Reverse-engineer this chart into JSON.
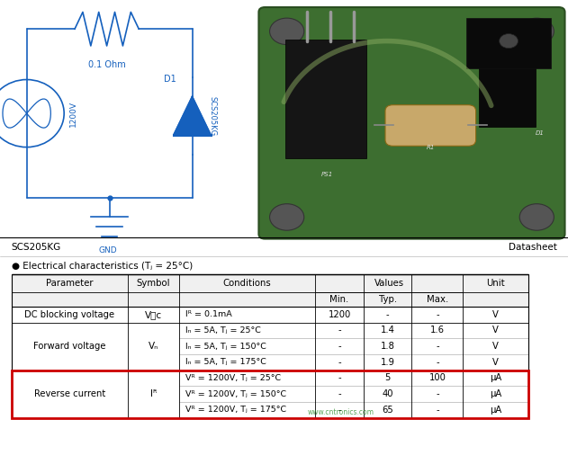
{
  "title_left": "SCS205KG",
  "title_right": "Datasheet",
  "elec_char_title": "● Electrical characteristics (Tⱼ = 25°C)",
  "background_color": "#ffffff",
  "watermark": "www.cntronics.com",
  "blue": "#1560bd",
  "groups": [
    {
      "name": "DC blocking voltage",
      "symbol": "V₝c",
      "highlight": false,
      "sub_rows": [
        {
          "cond": "Iᴿ = 0.1mA",
          "min": "1200",
          "typ": "-",
          "max": "-",
          "unit": "V"
        }
      ]
    },
    {
      "name": "Forward voltage",
      "symbol": "Vₙ",
      "highlight": false,
      "sub_rows": [
        {
          "cond": "Iₙ = 5A, Tⱼ = 25°C",
          "min": "-",
          "typ": "1.4",
          "max": "1.6",
          "unit": "V"
        },
        {
          "cond": "Iₙ = 5A, Tⱼ = 150°C",
          "min": "-",
          "typ": "1.8",
          "max": "-",
          "unit": "V"
        },
        {
          "cond": "Iₙ = 5A, Tⱼ = 175°C",
          "min": "-",
          "typ": "1.9",
          "max": "-",
          "unit": "V"
        }
      ]
    },
    {
      "name": "Reverse current",
      "symbol": "Iᴿ",
      "highlight": true,
      "sub_rows": [
        {
          "cond": "Vᴿ = 1200V, Tⱼ = 25°C",
          "min": "-",
          "typ": "5",
          "max": "100",
          "unit": "μA"
        },
        {
          "cond": "Vᴿ = 1200V, Tⱼ = 150°C",
          "min": "-",
          "typ": "40",
          "max": "-",
          "unit": "μA"
        },
        {
          "cond": "Vᴿ = 1200V, Tⱼ = 175°C",
          "min": "-",
          "typ": "65",
          "max": "-",
          "unit": "μA"
        }
      ]
    }
  ]
}
